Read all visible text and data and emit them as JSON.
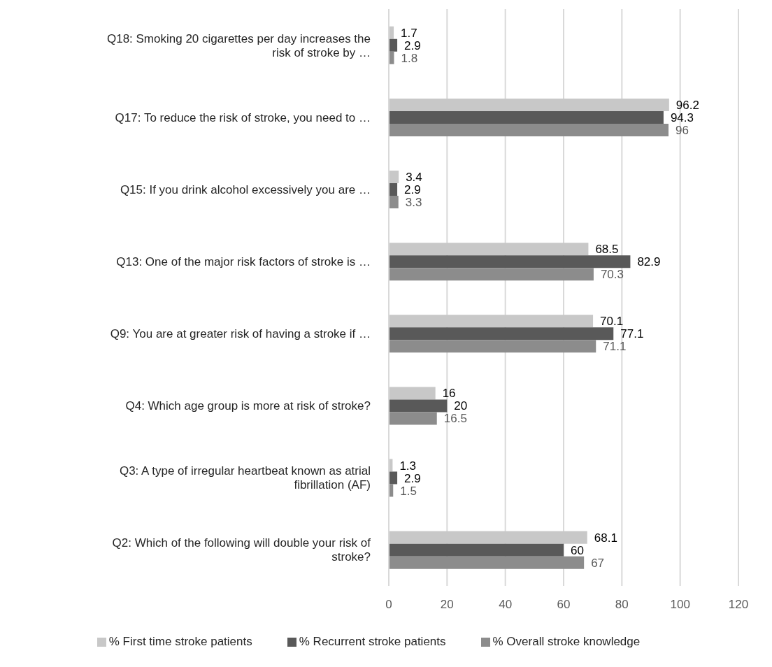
{
  "chart_data": {
    "type": "bar",
    "orientation": "horizontal",
    "categories": [
      "Q18: Smoking 20 cigarettes per day increases the risk of stroke by …",
      "Q17: To reduce the risk of stroke, you need to …",
      "Q15: If you drink alcohol excessively you are …",
      "Q13: One of the major risk factors of stroke is …",
      "Q9: You are at greater risk of having a stroke if …",
      "Q4: Which age group is more at risk of stroke?",
      "Q3: A type of irregular heartbeat known as atrial fibrillation (AF)",
      "Q2: Which of the following will double your risk of stroke?"
    ],
    "series": [
      {
        "name": "% First time stroke patients",
        "color": "#c8c8c8",
        "values": [
          1.7,
          96.2,
          3.4,
          68.5,
          70.1,
          16,
          1.3,
          68.1
        ]
      },
      {
        "name": "% Recurrent stroke patients",
        "color": "#595959",
        "values": [
          2.9,
          94.3,
          2.9,
          82.9,
          77.1,
          20,
          2.9,
          60
        ]
      },
      {
        "name": "% Overall stroke knowledge",
        "color": "#8c8c8c",
        "values": [
          1.8,
          96,
          3.3,
          70.3,
          71.1,
          16.5,
          1.5,
          67
        ]
      }
    ],
    "xlim": [
      0,
      120
    ],
    "xticks": [
      0,
      20,
      40,
      60,
      80,
      100,
      120
    ],
    "grid": "x",
    "legend": "bottom",
    "data_labels": true
  }
}
